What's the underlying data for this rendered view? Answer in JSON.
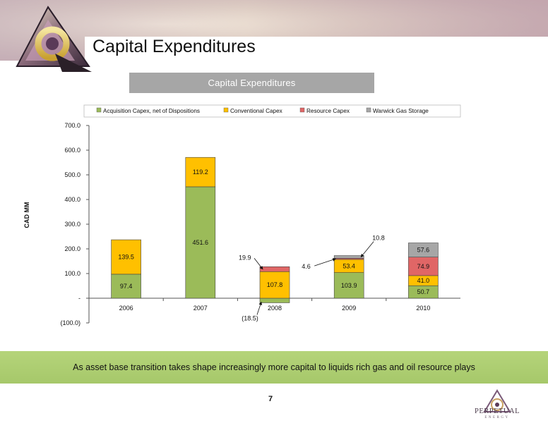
{
  "page": {
    "title": "Capital Expenditures",
    "page_number": "7",
    "footer_text": "As asset base transition takes shape increasingly more capital to liquids rich gas and oil resource plays",
    "company_name": "PERPETUAL",
    "company_sub": "ENERGY"
  },
  "chart_data": {
    "type": "bar",
    "stacked": true,
    "title": "Capital Expenditures",
    "ylabel": "CAD MM",
    "ylim": [
      -100,
      700
    ],
    "yticks": [
      -100,
      0,
      100,
      200,
      300,
      400,
      500,
      600,
      700
    ],
    "ytick_labels": [
      "(100.0)",
      "-",
      "100.0",
      "200.0",
      "300.0",
      "400.0",
      "500.0",
      "600.0",
      "700.0"
    ],
    "legend_position": "top",
    "categories": [
      "2006",
      "2007",
      "2008",
      "2009",
      "2010"
    ],
    "series": [
      {
        "name": "Acquisition Capex, net of Dispositions",
        "color": "#9bbb59",
        "values": [
          97.4,
          451.6,
          -18.5,
          103.9,
          50.7
        ]
      },
      {
        "name": "Conventional Capex",
        "color": "#ffc000",
        "values": [
          139.5,
          119.2,
          107.8,
          53.4,
          41.0
        ]
      },
      {
        "name": "Resource Capex",
        "color": "#e06666",
        "values": [
          0,
          0,
          19.9,
          4.6,
          74.9
        ]
      },
      {
        "name": "Warwick Gas Storage",
        "color": "#a6a6a6",
        "values": [
          0,
          0,
          0,
          10.8,
          57.6
        ]
      }
    ],
    "data_labels": [
      {
        "text": "97.4",
        "category": "2006",
        "series": 0
      },
      {
        "text": "139.5",
        "category": "2006",
        "series": 1
      },
      {
        "text": "451.6",
        "category": "2007",
        "series": 0
      },
      {
        "text": "119.2",
        "category": "2007",
        "series": 1
      },
      {
        "text": "(18.5)",
        "category": "2008",
        "series": 0
      },
      {
        "text": "107.8",
        "category": "2008",
        "series": 1
      },
      {
        "text": "19.9",
        "category": "2008",
        "series": 2
      },
      {
        "text": "103.9",
        "category": "2009",
        "series": 0
      },
      {
        "text": "53.4",
        "category": "2009",
        "series": 1
      },
      {
        "text": "4.6",
        "category": "2009",
        "series": 2
      },
      {
        "text": "10.8",
        "category": "2009",
        "series": 3
      },
      {
        "text": "50.7",
        "category": "2010",
        "series": 0
      },
      {
        "text": "41.0",
        "category": "2010",
        "series": 1
      },
      {
        "text": "74.9",
        "category": "2010",
        "series": 2
      },
      {
        "text": "57.6",
        "category": "2010",
        "series": 3
      }
    ]
  }
}
